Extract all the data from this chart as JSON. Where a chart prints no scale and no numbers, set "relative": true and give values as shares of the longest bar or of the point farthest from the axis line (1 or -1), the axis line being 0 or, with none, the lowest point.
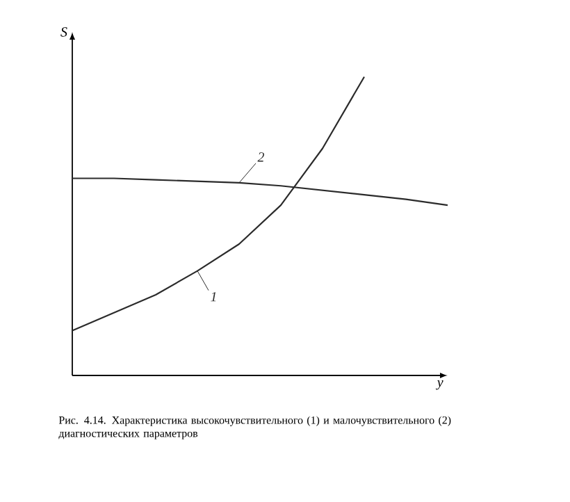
{
  "chart_data": {
    "type": "line",
    "relative": true,
    "xlabel": "y",
    "ylabel": "S",
    "categories": [
      null,
      null,
      null,
      null,
      null,
      null,
      null,
      null,
      null,
      null
    ],
    "series": [
      {
        "name": "1",
        "color": "#2b2b2b",
        "values": [
          0.15,
          0.21,
          0.27,
          0.35,
          0.44,
          0.57,
          0.76,
          1.0,
          null,
          null
        ]
      },
      {
        "name": "2",
        "color": "#2b2b2b",
        "values": [
          0.66,
          0.66,
          0.655,
          0.65,
          0.645,
          0.635,
          0.62,
          0.605,
          0.59,
          0.57
        ]
      }
    ],
    "annotations": [
      "Рис. 4.14. Характеристика высокочувствительного (1) и малочувствительного (2) диагностических параметров"
    ],
    "marker": "none",
    "line_style": "solid"
  }
}
